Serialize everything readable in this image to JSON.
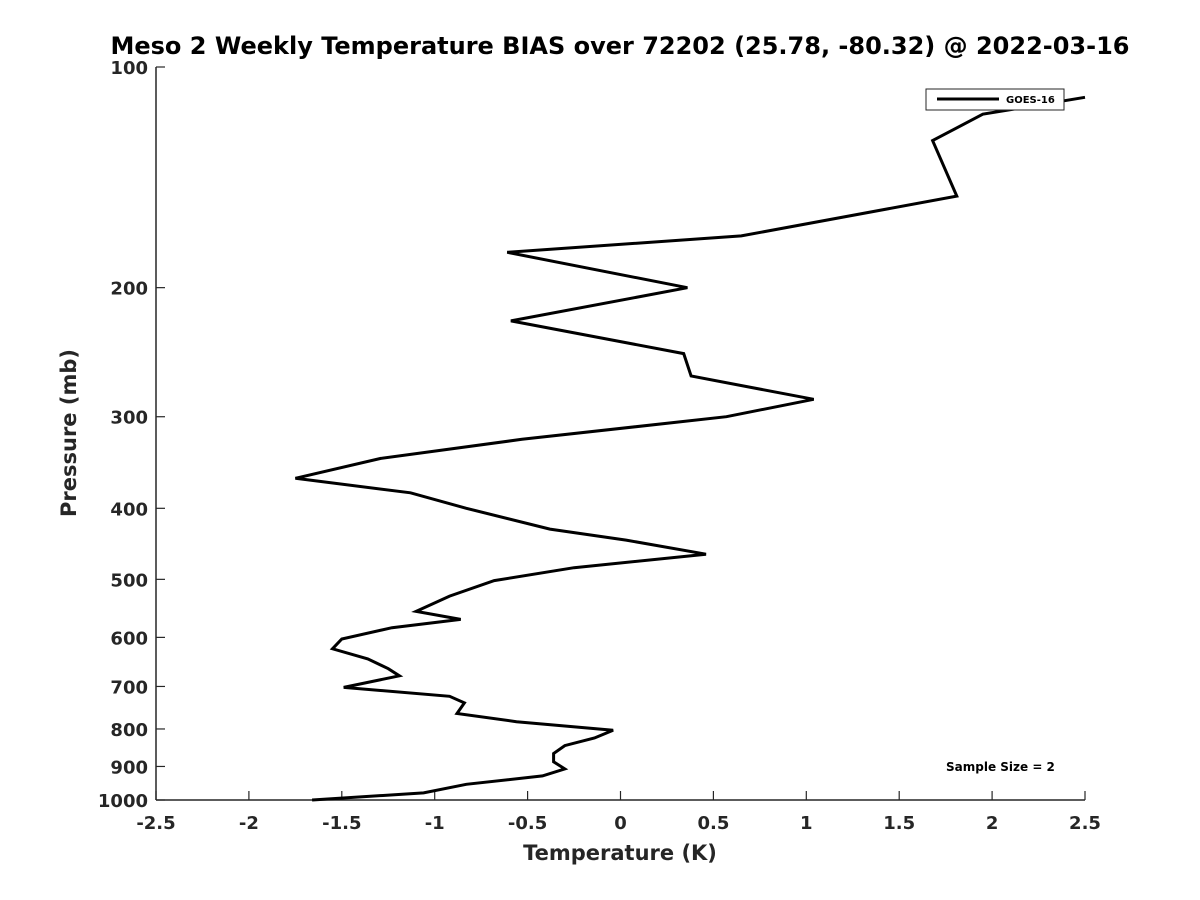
{
  "chart_data": {
    "type": "line",
    "title": "Meso 2 Weekly Temperature BIAS over 72202 (25.78, -80.32) @ 2022-03-16",
    "xlabel": "Temperature (K)",
    "ylabel": "Pressure (mb)",
    "xlim": [
      -2.5,
      2.5
    ],
    "ylim": [
      1000,
      100
    ],
    "yscale": "log",
    "y_reversed": true,
    "xticks": [
      -2.5,
      -2,
      -1.5,
      -1,
      -0.5,
      0,
      0.5,
      1,
      1.5,
      2,
      2.5
    ],
    "xtick_labels": [
      "-2.5",
      "-2",
      "-1.5",
      "-1",
      "-0.5",
      "0",
      "0.5",
      "1",
      "1.5",
      "2",
      "2.5"
    ],
    "yticks": [
      100,
      200,
      300,
      400,
      500,
      600,
      700,
      800,
      900,
      1000
    ],
    "ytick_labels": [
      "100",
      "200",
      "300",
      "400",
      "500",
      "600",
      "700",
      "800",
      "900",
      "1000"
    ],
    "grid": false,
    "legend_position": "top-right",
    "series": [
      {
        "name": "GOES-16",
        "color": "#000000",
        "points": [
          [
            2.5,
            110
          ],
          [
            1.95,
            116
          ],
          [
            1.68,
            126
          ],
          [
            1.81,
            150
          ],
          [
            0.65,
            170
          ],
          [
            -0.61,
            179
          ],
          [
            0.36,
            200
          ],
          [
            -0.59,
            222
          ],
          [
            0.34,
            246
          ],
          [
            0.38,
            264
          ],
          [
            1.04,
            284
          ],
          [
            0.57,
            300
          ],
          [
            -0.53,
            322
          ],
          [
            -1.29,
            342
          ],
          [
            -1.75,
            364
          ],
          [
            -1.13,
            381
          ],
          [
            -0.83,
            400
          ],
          [
            -0.38,
            427
          ],
          [
            0.03,
            442
          ],
          [
            0.46,
            462
          ],
          [
            -0.25,
            482
          ],
          [
            -0.68,
            502
          ],
          [
            -0.92,
            527
          ],
          [
            -1.1,
            553
          ],
          [
            -0.86,
            567
          ],
          [
            -1.23,
            582
          ],
          [
            -1.5,
            603
          ],
          [
            -1.55,
            622
          ],
          [
            -1.36,
            642
          ],
          [
            -1.25,
            662
          ],
          [
            -1.19,
            677
          ],
          [
            -1.49,
            702
          ],
          [
            -0.92,
            722
          ],
          [
            -0.84,
            737
          ],
          [
            -0.88,
            762
          ],
          [
            -0.56,
            782
          ],
          [
            -0.04,
            803
          ],
          [
            -0.14,
            823
          ],
          [
            -0.3,
            843
          ],
          [
            -0.36,
            864
          ],
          [
            -0.36,
            887
          ],
          [
            -0.3,
            907
          ],
          [
            -0.42,
            927
          ],
          [
            -0.83,
            952
          ],
          [
            -1.06,
            978
          ],
          [
            -1.66,
            1000
          ]
        ]
      }
    ],
    "annotations": [
      "Sample Size = 2"
    ]
  }
}
